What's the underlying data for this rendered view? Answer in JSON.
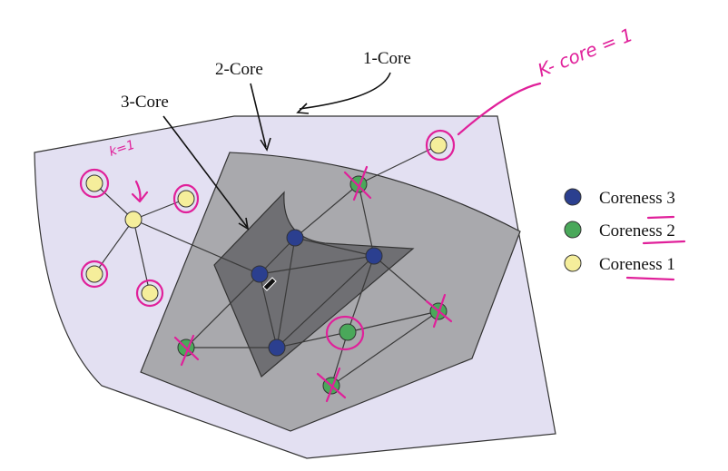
{
  "labels": {
    "core1": "1-Core",
    "core2": "2-Core",
    "core3": "3-Core"
  },
  "legend": [
    {
      "text": "Coreness 3",
      "color": "#2b3f8f"
    },
    {
      "text": "Coreness 2",
      "color": "#4aa85a"
    },
    {
      "text": "Coreness 1",
      "color": "#f5ee9b"
    }
  ],
  "colors": {
    "core1_fill": "#e3e0f2",
    "core2_fill": "#a9a9ad",
    "core3_fill": "#6f6f73",
    "coreness3": "#2b3f8f",
    "coreness2": "#4aa85a",
    "coreness1": "#f5ee9b",
    "annotation": "#e0209a"
  },
  "annotations": {
    "kcore_note": "K- core = 1",
    "left_note": "k=1"
  }
}
